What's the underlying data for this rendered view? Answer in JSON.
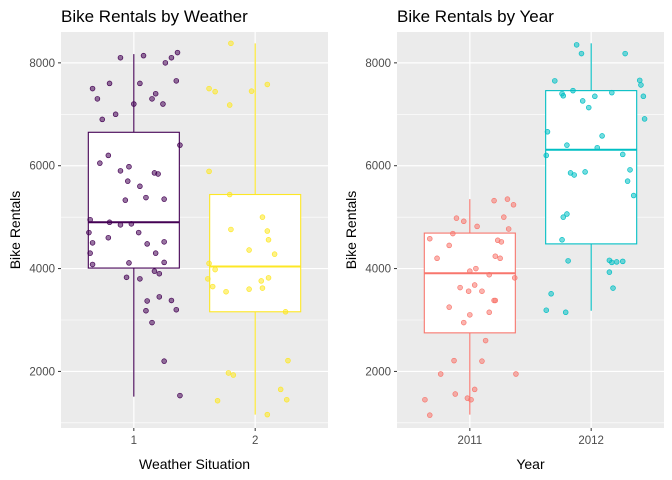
{
  "chart_data": [
    {
      "type": "box",
      "title": "Bike Rentals by Weather",
      "xlabel": "Weather Situation",
      "ylabel": "Bike Rentals",
      "ylim": [
        900,
        8600
      ],
      "yticks": [
        2000,
        4000,
        6000,
        8000
      ],
      "categories": [
        "1",
        "2"
      ],
      "colors": [
        "#440154",
        "#FDE725"
      ],
      "grid": true,
      "boxes": [
        {
          "category": "1",
          "min": 1510,
          "q1": 4010,
          "median": 4900,
          "q3": 6650,
          "max": 8170
        },
        {
          "category": "2",
          "min": 1160,
          "q1": 3160,
          "median": 4040,
          "q3": 5440,
          "max": 8380
        }
      ],
      "points": [
        [
          [
            0.66,
            7500
          ],
          [
            0.7,
            7300
          ],
          [
            0.74,
            6900
          ],
          [
            0.85,
            7000
          ],
          [
            0.8,
            7600
          ],
          [
            0.89,
            8100
          ],
          [
            1.0,
            7200
          ],
          [
            1.05,
            7600
          ],
          [
            1.08,
            8140
          ],
          [
            1.15,
            7300
          ],
          [
            1.18,
            7400
          ],
          [
            1.26,
            8000
          ],
          [
            1.31,
            8100
          ],
          [
            1.36,
            8200
          ],
          [
            1.35,
            7650
          ],
          [
            1.38,
            6400
          ],
          [
            1.24,
            7200
          ],
          [
            0.72,
            6050
          ],
          [
            0.79,
            6200
          ],
          [
            0.89,
            5900
          ],
          [
            0.95,
            5700
          ],
          [
            0.93,
            5330
          ],
          [
            0.96,
            5980
          ],
          [
            1.05,
            5600
          ],
          [
            1.1,
            5380
          ],
          [
            1.17,
            5860
          ],
          [
            1.2,
            5840
          ],
          [
            1.25,
            5350
          ],
          [
            0.64,
            4950
          ],
          [
            0.63,
            4700
          ],
          [
            0.66,
            4500
          ],
          [
            0.64,
            4300
          ],
          [
            0.66,
            4080
          ],
          [
            0.79,
            4600
          ],
          [
            0.8,
            4900
          ],
          [
            0.89,
            4850
          ],
          [
            0.98,
            4870
          ],
          [
            1.04,
            4700
          ],
          [
            1.11,
            4480
          ],
          [
            1.18,
            4300
          ],
          [
            1.25,
            4520
          ],
          [
            1.25,
            4120
          ],
          [
            0.96,
            4110
          ],
          [
            0.94,
            3830
          ],
          [
            1.17,
            3950
          ],
          [
            1.21,
            3900
          ],
          [
            1.05,
            3800
          ],
          [
            1.11,
            3370
          ],
          [
            1.1,
            3180
          ],
          [
            1.15,
            2950
          ],
          [
            1.21,
            3450
          ],
          [
            1.31,
            3380
          ],
          [
            1.35,
            3200
          ],
          [
            1.25,
            2200
          ],
          [
            1.38,
            1530
          ]
        ],
        [
          [
            1.8,
            8380
          ],
          [
            1.62,
            7500
          ],
          [
            1.67,
            7440
          ],
          [
            1.79,
            7180
          ],
          [
            1.97,
            7450
          ],
          [
            2.1,
            7580
          ],
          [
            1.62,
            5890
          ],
          [
            1.79,
            5440
          ],
          [
            1.62,
            4100
          ],
          [
            1.67,
            3980
          ],
          [
            1.8,
            4760
          ],
          [
            1.95,
            4360
          ],
          [
            2.06,
            5000
          ],
          [
            2.1,
            4730
          ],
          [
            2.11,
            4560
          ],
          [
            2.16,
            4280
          ],
          [
            2.11,
            3820
          ],
          [
            1.61,
            3800
          ],
          [
            1.65,
            3650
          ],
          [
            1.76,
            3550
          ],
          [
            1.95,
            3600
          ],
          [
            2.05,
            3760
          ],
          [
            2.06,
            3620
          ],
          [
            2.25,
            3160
          ],
          [
            1.78,
            1970
          ],
          [
            1.82,
            1930
          ],
          [
            1.69,
            1430
          ],
          [
            2.21,
            1650
          ],
          [
            2.26,
            1450
          ],
          [
            2.27,
            2210
          ],
          [
            2.1,
            1160
          ]
        ]
      ]
    },
    {
      "type": "box",
      "title": "Bike Rentals by Year",
      "xlabel": "Year",
      "ylabel": "Bike Rentals",
      "ylim": [
        900,
        8600
      ],
      "yticks": [
        2000,
        4000,
        6000,
        8000
      ],
      "categories": [
        "2011",
        "2012"
      ],
      "colors": [
        "#F8766D",
        "#00BFC4"
      ],
      "grid": true,
      "boxes": [
        {
          "category": "2011",
          "min": 1160,
          "q1": 2750,
          "median": 3910,
          "q3": 4690,
          "max": 5350
        },
        {
          "category": "2012",
          "min": 3180,
          "q1": 4480,
          "median": 6310,
          "q3": 7460,
          "max": 8380
        }
      ],
      "points": [
        [
          [
            0.63,
            1450
          ],
          [
            0.67,
            1150
          ],
          [
            0.76,
            1950
          ],
          [
            0.87,
            2210
          ],
          [
            0.88,
            1560
          ],
          [
            1.04,
            1650
          ],
          [
            1.1,
            2200
          ],
          [
            1.38,
            1950
          ],
          [
            0.67,
            4580
          ],
          [
            0.73,
            4200
          ],
          [
            0.83,
            4450
          ],
          [
            0.86,
            4680
          ],
          [
            0.89,
            4980
          ],
          [
            0.95,
            4920
          ],
          [
            1.06,
            4820
          ],
          [
            1.28,
            5000
          ],
          [
            1.31,
            5350
          ],
          [
            1.2,
            5320
          ],
          [
            1.36,
            5240
          ],
          [
            1.32,
            4770
          ],
          [
            1.23,
            4550
          ],
          [
            1.26,
            4520
          ],
          [
            1.21,
            4240
          ],
          [
            1.25,
            4200
          ],
          [
            1.05,
            4000
          ],
          [
            1.0,
            3950
          ],
          [
            1.04,
            3680
          ],
          [
            1.1,
            3560
          ],
          [
            1.16,
            3880
          ],
          [
            0.92,
            3630
          ],
          [
            0.99,
            3560
          ],
          [
            1.37,
            3820
          ],
          [
            1.2,
            3380
          ],
          [
            1.21,
            3380
          ],
          [
            0.83,
            3250
          ],
          [
            1.0,
            3100
          ],
          [
            1.16,
            3150
          ],
          [
            0.95,
            2950
          ],
          [
            1.13,
            2600
          ],
          [
            1.01,
            1450
          ],
          [
            0.98,
            1480
          ]
        ],
        [
          [
            1.88,
            8350
          ],
          [
            1.92,
            8180
          ],
          [
            2.28,
            8180
          ],
          [
            1.7,
            7650
          ],
          [
            1.76,
            7400
          ],
          [
            1.77,
            7360
          ],
          [
            1.85,
            7460
          ],
          [
            1.93,
            7260
          ],
          [
            1.98,
            7130
          ],
          [
            2.03,
            7350
          ],
          [
            2.17,
            7420
          ],
          [
            2.4,
            7660
          ],
          [
            2.41,
            7570
          ],
          [
            2.43,
            7350
          ],
          [
            2.44,
            6910
          ],
          [
            1.64,
            6660
          ],
          [
            1.63,
            6200
          ],
          [
            1.8,
            6400
          ],
          [
            2.05,
            6350
          ],
          [
            2.09,
            6580
          ],
          [
            2.26,
            6220
          ],
          [
            2.32,
            5920
          ],
          [
            2.3,
            5700
          ],
          [
            2.35,
            5420
          ],
          [
            1.83,
            5860
          ],
          [
            1.86,
            5820
          ],
          [
            1.95,
            5880
          ],
          [
            1.76,
            4560
          ],
          [
            1.77,
            5000
          ],
          [
            1.8,
            5060
          ],
          [
            1.81,
            4150
          ],
          [
            2.15,
            4160
          ],
          [
            2.17,
            4120
          ],
          [
            2.21,
            4130
          ],
          [
            2.26,
            4140
          ],
          [
            2.15,
            3930
          ],
          [
            2.18,
            3620
          ],
          [
            1.67,
            3510
          ],
          [
            1.63,
            3190
          ],
          [
            1.79,
            3150
          ]
        ]
      ]
    }
  ]
}
